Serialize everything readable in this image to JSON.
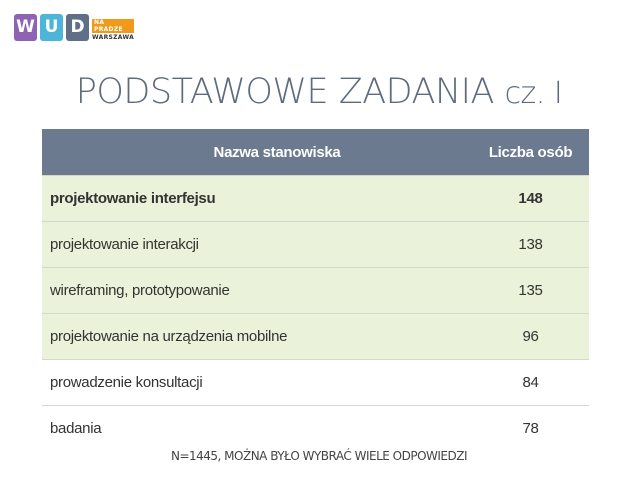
{
  "logo": {
    "letters": [
      {
        "char": "W",
        "color": "#8e63b4"
      },
      {
        "char": "U",
        "color": "#4db6d6"
      },
      {
        "char": "D",
        "color": "#5f6f86"
      }
    ],
    "tag_top": "NA PRADZE",
    "tag_bottom": "WARSZAWA"
  },
  "title": {
    "main": "PODSTAWOWE ZADANIA",
    "suffix": "cz. I"
  },
  "table": {
    "headers": [
      "Nazwa stanowiska",
      "Liczba osób"
    ],
    "rows": [
      {
        "name": "projektowanie interfejsu",
        "count": "148"
      },
      {
        "name": "projektowanie interakcji",
        "count": "138"
      },
      {
        "name": "wireframing, prototypowanie",
        "count": "135"
      },
      {
        "name": "projektowanie na urządzenia mobilne",
        "count": "96"
      },
      {
        "name": "prowadzenie konsultacji",
        "count": "84"
      },
      {
        "name": "badania",
        "count": "78"
      }
    ]
  },
  "footnote": "N=1445, MOŻNA BYŁO WYBRAĆ WIELE ODPOWIEDZI"
}
